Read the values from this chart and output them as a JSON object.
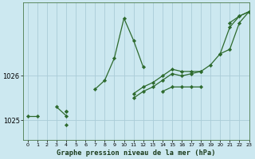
{
  "title": "Graphe pression niveau de la mer (hPa)",
  "background_color": "#cce8f0",
  "grid_color": "#aaccd8",
  "line_color": "#2d6a2d",
  "marker_color": "#2d6a2d",
  "xlim": [
    -0.5,
    23
  ],
  "ylim": [
    1024.55,
    1027.65
  ],
  "yticks": [
    1025,
    1026
  ],
  "xticks": [
    0,
    1,
    2,
    3,
    4,
    5,
    6,
    7,
    8,
    9,
    10,
    11,
    12,
    13,
    14,
    15,
    16,
    17,
    18,
    19,
    20,
    21,
    22,
    23
  ],
  "series": [
    [
      1025.1,
      1025.1,
      null,
      1025.3,
      1025.1,
      null,
      null,
      1025.7,
      1025.9,
      1026.4,
      1027.3,
      1026.8,
      1026.2,
      null,
      null,
      null,
      null,
      null,
      null,
      null,
      null,
      1027.2,
      1027.35,
      1027.45
    ],
    [
      null,
      null,
      null,
      null,
      1024.9,
      null,
      null,
      null,
      null,
      null,
      null,
      null,
      null,
      null,
      1025.65,
      1025.75,
      1025.75,
      1025.75,
      1025.75,
      null,
      null,
      null,
      null,
      null
    ],
    [
      null,
      null,
      null,
      null,
      1025.2,
      null,
      null,
      null,
      null,
      null,
      null,
      1025.6,
      1025.75,
      1025.85,
      1026.0,
      1026.15,
      1026.1,
      1026.1,
      1026.1,
      null,
      1026.5,
      1026.6,
      1027.2,
      1027.45
    ],
    [
      null,
      null,
      null,
      null,
      1025.2,
      null,
      null,
      null,
      null,
      null,
      null,
      1025.5,
      1025.65,
      1025.75,
      1025.9,
      1026.05,
      1026.0,
      1026.05,
      1026.1,
      1026.25,
      1026.5,
      1027.1,
      1027.35,
      1027.45
    ]
  ]
}
